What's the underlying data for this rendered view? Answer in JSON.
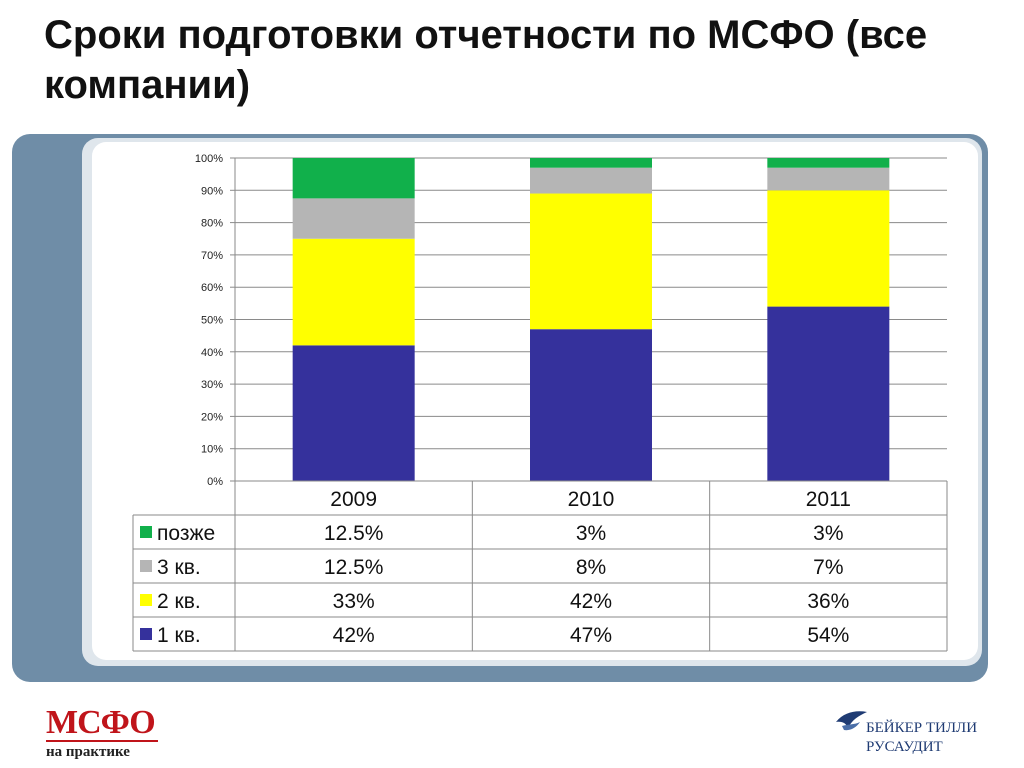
{
  "title": "Сроки подготовки отчетности по МСФО (все компании)",
  "chart_data": {
    "type": "bar",
    "stacked": true,
    "percent": true,
    "title": "",
    "xlabel": "",
    "ylabel": "",
    "ylim": [
      0,
      100
    ],
    "yticks": [
      "0%",
      "10%",
      "20%",
      "30%",
      "40%",
      "50%",
      "60%",
      "70%",
      "80%",
      "90%",
      "100%"
    ],
    "categories": [
      "2009",
      "2010",
      "2011"
    ],
    "grid": true,
    "legend": "data-table-left",
    "series": [
      {
        "name": "1 кв.",
        "color": "#35319c",
        "values": [
          42,
          47,
          54
        ],
        "labels": [
          "42%",
          "47%",
          "54%"
        ]
      },
      {
        "name": "2 кв.",
        "color": "#ffff00",
        "values": [
          33,
          42,
          36
        ],
        "labels": [
          "33%",
          "42%",
          "36%"
        ]
      },
      {
        "name": "3 кв.",
        "color": "#b5b5b5",
        "values": [
          12.5,
          8,
          7
        ],
        "labels": [
          "12.5%",
          "8%",
          "7%"
        ]
      },
      {
        "name": "позже",
        "color": "#11b04b",
        "values": [
          12.5,
          3,
          3
        ],
        "labels": [
          "12.5%",
          "3%",
          "3%"
        ]
      }
    ],
    "table_row_order": [
      "позже",
      "3 кв.",
      "2 кв.",
      "1 кв."
    ]
  },
  "logos": {
    "left": {
      "line1": "МСФО",
      "line2": "на практике"
    },
    "right": {
      "line1": "БЕЙКЕР ТИЛЛИ",
      "line2": "РУСАУДИТ"
    }
  }
}
